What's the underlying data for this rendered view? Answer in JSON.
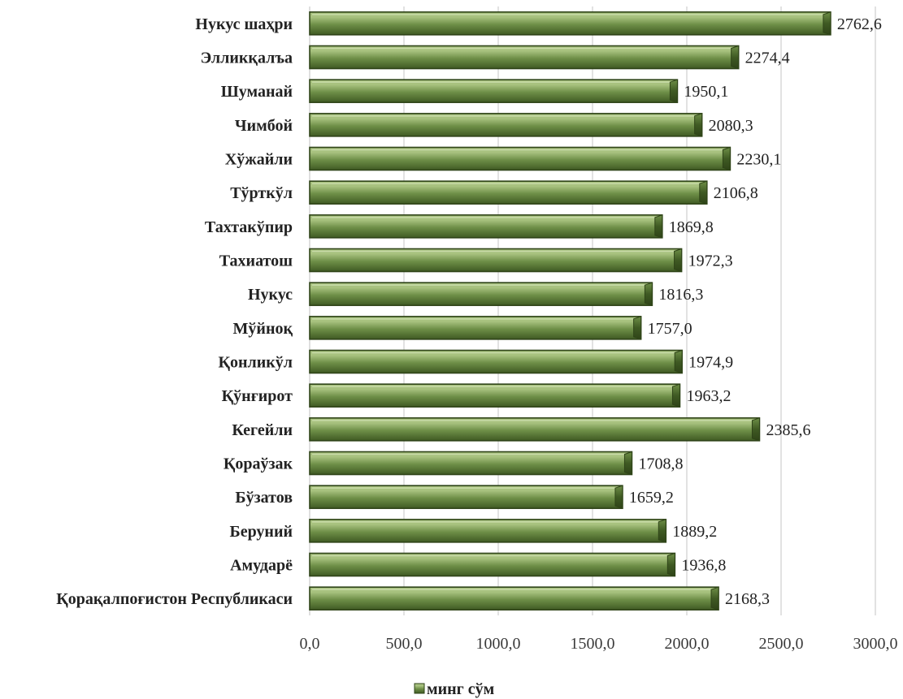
{
  "chart_data": {
    "type": "bar",
    "orientation": "horizontal",
    "categories": [
      "Нукус шаҳри",
      "Элликқалъа",
      "Шуманай",
      "Чимбой",
      "Хўжайли",
      "Тўрткўл",
      "Тахтакўпир",
      "Тахиатош",
      "Нукус",
      "Мўйноқ",
      "Қонликўл",
      "Қўнғирот",
      "Кегейли",
      "Қораўзак",
      "Бўзатов",
      "Беруний",
      "Амударё",
      "Қорақалпоғистон Республикаси"
    ],
    "series": [
      {
        "name": "минг сўм",
        "values": [
          2762.6,
          2274.4,
          1950.1,
          2080.3,
          2230.1,
          2106.8,
          1869.8,
          1972.3,
          1816.3,
          1757.0,
          1974.9,
          1963.2,
          2385.6,
          1708.8,
          1659.2,
          1889.2,
          1936.8,
          2168.3
        ],
        "value_labels": [
          "2762,6",
          "2274,4",
          "1950,1",
          "2080,3",
          "2230,1",
          "2106,8",
          "1869,8",
          "1972,3",
          "1816,3",
          "1757,0",
          "1974,9",
          "1963,2",
          "2385,6",
          "1708,8",
          "1659,2",
          "1889,2",
          "1936,8",
          "2168,3"
        ],
        "color": "#6b8a45"
      }
    ],
    "xlim": [
      0,
      3000
    ],
    "xticks": [
      0,
      500,
      1000,
      1500,
      2000,
      2500,
      3000
    ],
    "xtick_labels": [
      "0,0",
      "500,0",
      "1000,0",
      "1500,0",
      "2000,0",
      "2500,0",
      "3000,0"
    ],
    "title": "",
    "xlabel": "",
    "ylabel": "",
    "grid": "vertical",
    "legend": {
      "position": "bottom",
      "label": "минг сўм"
    },
    "colors": {
      "bar_light": "#a8c27f",
      "bar_mid": "#6e8f47",
      "bar_dark": "#3f5a23",
      "bar_edge": "#2f4418",
      "grid": "#d9d9d9"
    }
  }
}
